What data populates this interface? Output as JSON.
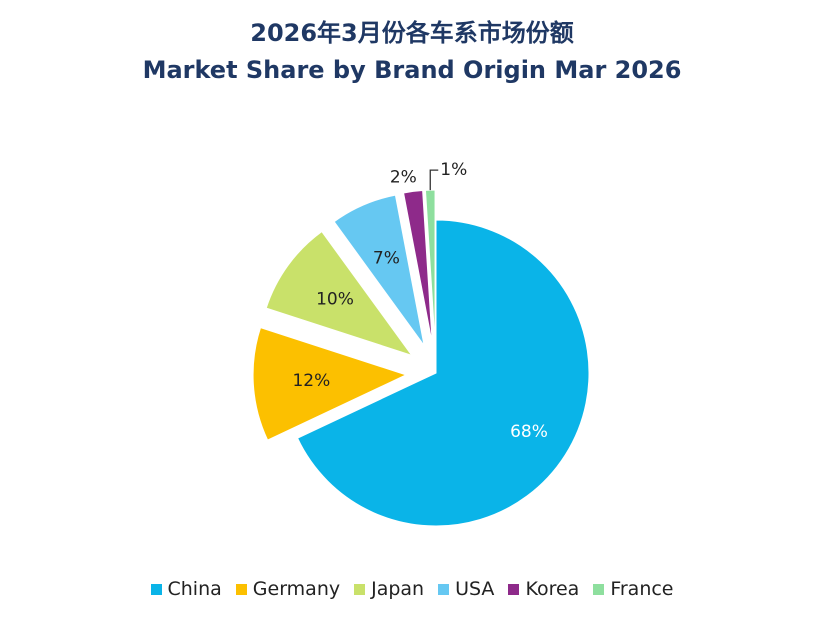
{
  "chart_data": {
    "type": "pie",
    "title": "2026年3月份各车系市场份额",
    "subtitle": "Market Share by Brand Origin Mar 2026",
    "categories": [
      "China",
      "Germany",
      "Japan",
      "USA",
      "Korea",
      "France"
    ],
    "values": [
      68,
      12,
      10,
      7,
      2,
      1
    ],
    "labels": [
      "68%",
      "12%",
      "10%",
      "7%",
      "2%",
      "1%"
    ],
    "colors": [
      "#0ab4e8",
      "#fcc000",
      "#c9e16a",
      "#66c8f2",
      "#8e2a8a",
      "#8edf9e"
    ],
    "exploded": [
      false,
      true,
      true,
      true,
      true,
      true
    ],
    "legend_position": "bottom"
  }
}
